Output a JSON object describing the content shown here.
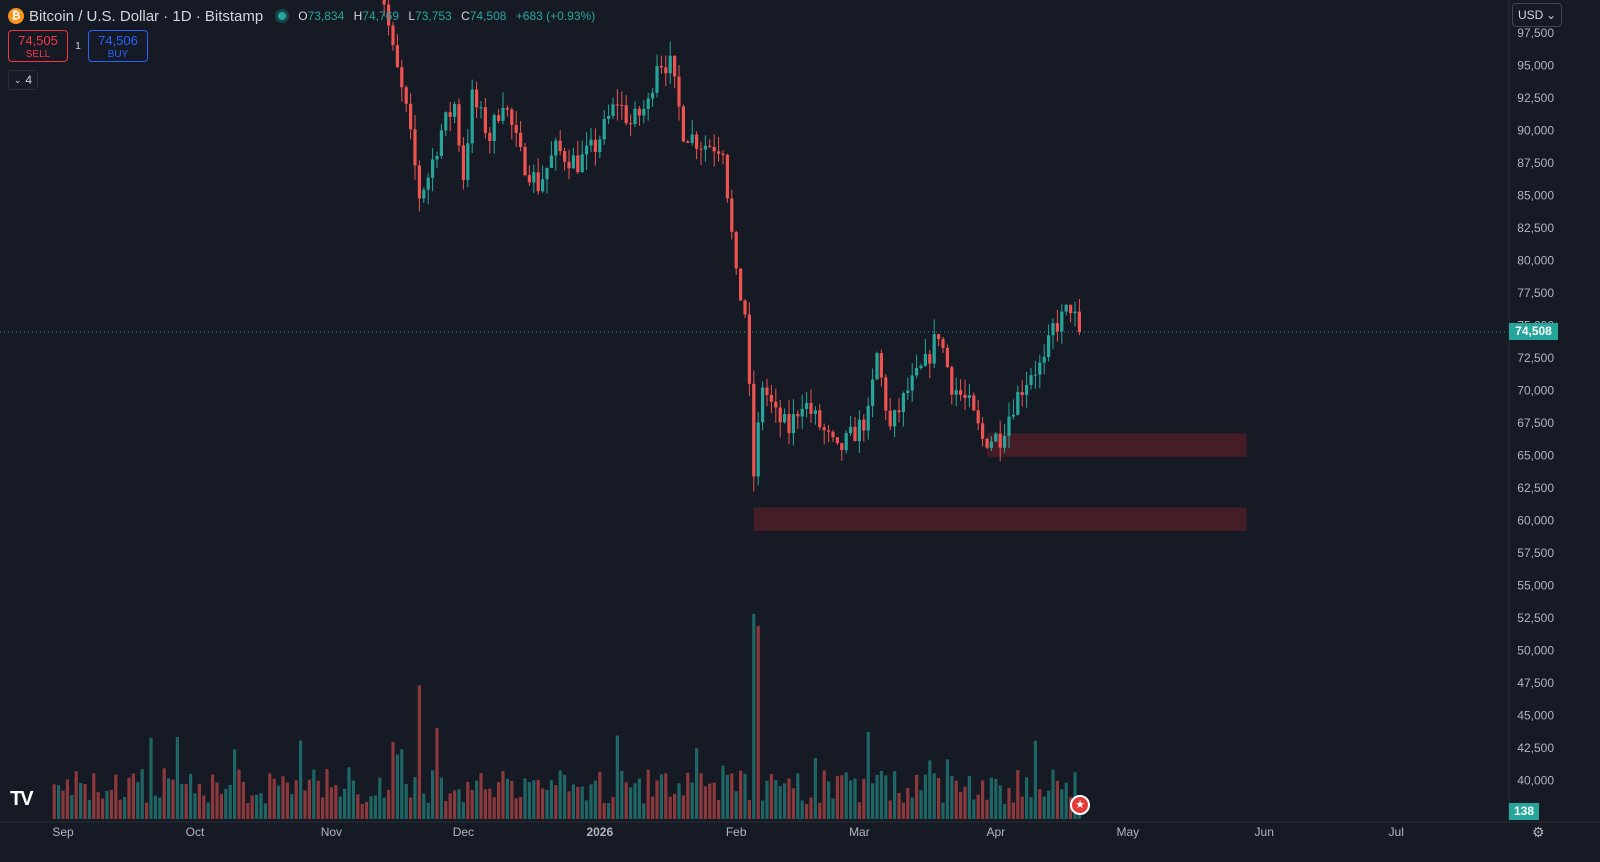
{
  "header": {
    "symbol": "Bitcoin / U.S. Dollar · 1D · Bitstamp",
    "coin_glyph": "₿",
    "open_label": "O",
    "open": "73,834",
    "high_label": "H",
    "high": "74,769",
    "low_label": "L",
    "low": "73,753",
    "close_label": "C",
    "close": "74,508",
    "change": "+683 (+0.93%)"
  },
  "trade": {
    "sell_price": "74,505",
    "sell_label": "SELL",
    "spread": "1",
    "buy_price": "74,506",
    "buy_label": "BUY"
  },
  "indicators_toggle": {
    "chevron": "⌄",
    "count": "4"
  },
  "currency": {
    "label": "USD",
    "chevron": "⌄"
  },
  "last_price_tag": "74,508",
  "volume_tag": "138",
  "logo_text": "TV",
  "colors": {
    "up": "#26a69a",
    "down": "#ef5350",
    "background": "#161a25",
    "zone": "#4a1e28",
    "grid_text": "#b2b5be",
    "price_line": "#26a69a"
  },
  "chart_data": {
    "type": "candlestick",
    "title": "Bitcoin / U.S. Dollar · 1D · Bitstamp",
    "x_tick_labels": [
      "Sep",
      "Oct",
      "Nov",
      "Dec",
      "2026",
      "Feb",
      "Mar",
      "Apr",
      "May",
      "Jun",
      "Jul"
    ],
    "y_tick_labels": [
      "97,500",
      "95,000",
      "92,500",
      "90,000",
      "87,500",
      "85,000",
      "82,500",
      "80,000",
      "77,500",
      "75,000",
      "72,500",
      "70,000",
      "67,500",
      "65,000",
      "62,500",
      "60,000",
      "57,500",
      "55,000",
      "52,500",
      "50,000",
      "47,500",
      "45,000",
      "42,500",
      "40,000"
    ],
    "y_ticks": [
      97500,
      95000,
      92500,
      90000,
      87500,
      85000,
      82500,
      80000,
      77500,
      75000,
      72500,
      70000,
      67500,
      65000,
      62500,
      60000,
      57500,
      55000,
      52500,
      50000,
      47500,
      45000,
      42500,
      40000
    ],
    "x_ticks_dates": [
      "2025-09-01",
      "2025-10-01",
      "2025-11-01",
      "2025-12-01",
      "2026-01-01",
      "2026-02-01",
      "2026-03-01",
      "2026-04-01",
      "2026-05-01",
      "2026-06-01",
      "2026-07-01"
    ],
    "last_price": 74508,
    "price_keypoints": [
      [
        "2025-11-11",
        104000
      ],
      [
        "2025-11-13",
        100000
      ],
      [
        "2025-11-15",
        96000
      ],
      [
        "2025-11-18",
        91500
      ],
      [
        "2025-11-21",
        85000
      ],
      [
        "2025-11-23",
        86500
      ],
      [
        "2025-11-26",
        90000
      ],
      [
        "2025-11-29",
        92000
      ],
      [
        "2025-12-01",
        86500
      ],
      [
        "2025-12-03",
        92500
      ],
      [
        "2025-12-07",
        89500
      ],
      [
        "2025-12-10",
        92500
      ],
      [
        "2025-12-14",
        88000
      ],
      [
        "2025-12-18",
        85800
      ],
      [
        "2025-12-22",
        88500
      ],
      [
        "2025-12-27",
        87500
      ],
      [
        "2025-12-31",
        88800
      ],
      [
        "2026-01-05",
        92300
      ],
      [
        "2026-01-08",
        90500
      ],
      [
        "2026-01-12",
        92000
      ],
      [
        "2026-01-14",
        95500
      ],
      [
        "2026-01-17",
        95000
      ],
      [
        "2026-01-20",
        90000
      ],
      [
        "2026-01-24",
        89000
      ],
      [
        "2026-01-29",
        88800
      ],
      [
        "2026-02-01",
        78500
      ],
      [
        "2026-02-03",
        76000
      ],
      [
        "2026-02-05",
        63500
      ],
      [
        "2026-02-07",
        70500
      ],
      [
        "2026-02-10",
        68000
      ],
      [
        "2026-02-13",
        67000
      ],
      [
        "2026-02-16",
        69300
      ],
      [
        "2026-02-20",
        67300
      ],
      [
        "2026-02-24",
        65200
      ],
      [
        "2026-02-28",
        66800
      ],
      [
        "2026-03-03",
        68000
      ],
      [
        "2026-03-05",
        72700
      ],
      [
        "2026-03-08",
        67000
      ],
      [
        "2026-03-12",
        70000
      ],
      [
        "2026-03-16",
        72000
      ],
      [
        "2026-03-19",
        74500
      ],
      [
        "2026-03-22",
        70500
      ],
      [
        "2026-03-26",
        68800
      ],
      [
        "2026-03-29",
        66200
      ],
      [
        "2026-04-02",
        66500
      ],
      [
        "2026-04-05",
        69000
      ],
      [
        "2026-04-09",
        71500
      ],
      [
        "2026-04-12",
        72000
      ],
      [
        "2026-04-14",
        74800
      ],
      [
        "2026-04-16",
        75500
      ],
      [
        "2026-04-18",
        76500
      ],
      [
        "2026-04-20",
        74508
      ]
    ],
    "zones": [
      {
        "from": "2026-03-30",
        "to": "2026-05-28",
        "price_high": 66700,
        "price_low": 64900
      },
      {
        "from": "2026-02-05",
        "to": "2026-05-28",
        "price_high": 61000,
        "price_low": 59200
      }
    ],
    "volume_spikes": [
      {
        "date": "2026-02-05",
        "value": 138000
      },
      {
        "date": "2026-02-06",
        "value": 130000
      },
      {
        "date": "2025-11-21",
        "value": 90000
      }
    ]
  }
}
